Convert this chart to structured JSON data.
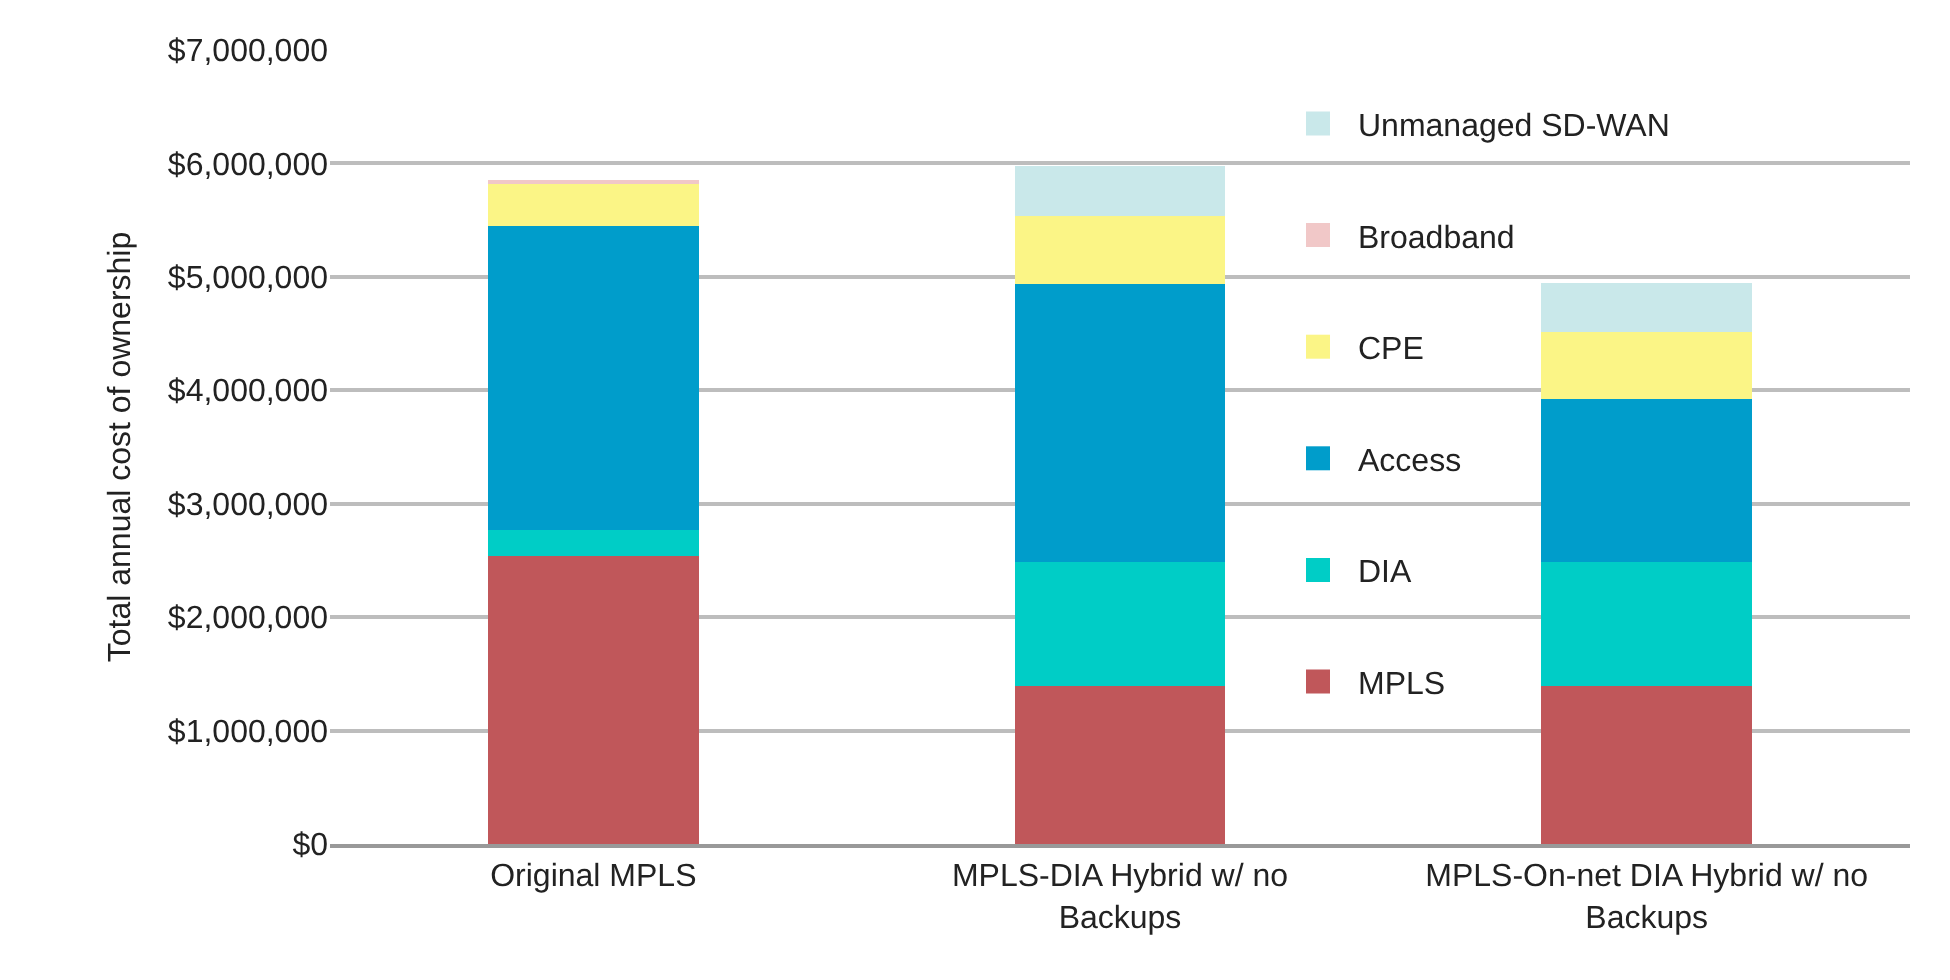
{
  "chart_data": {
    "type": "bar",
    "stacked": true,
    "ylabel": "Total annual cost of ownership",
    "categories": [
      "Original MPLS",
      "MPLS-DIA Hybrid w/ no Backups",
      "MPLS-On-net DIA Hybrid w/ no Backups"
    ],
    "series": [
      {
        "name": "MPLS",
        "color": "#c0575a",
        "values": [
          2540000,
          1390000,
          1390000
        ]
      },
      {
        "name": "DIA",
        "color": "#00cdc6",
        "values": [
          230000,
          1100000,
          1100000
        ]
      },
      {
        "name": "Access",
        "color": "#009dcb",
        "values": [
          2680000,
          2450000,
          1430000
        ]
      },
      {
        "name": "CPE",
        "color": "#fbf586",
        "values": [
          370000,
          600000,
          590000
        ]
      },
      {
        "name": "Broadband",
        "color": "#f1c8c8",
        "values": [
          20000,
          0,
          0
        ]
      },
      {
        "name": "Unmanaged SD-WAN",
        "color": "#c9e8ea",
        "values": [
          0,
          440000,
          440000
        ]
      }
    ],
    "ylim": [
      0,
      7000000
    ],
    "yticks": [
      {
        "value": 0,
        "label": "$0"
      },
      {
        "value": 1000000,
        "label": "$1,000,000"
      },
      {
        "value": 2000000,
        "label": "$2,000,000"
      },
      {
        "value": 3000000,
        "label": "$3,000,000"
      },
      {
        "value": 4000000,
        "label": "$4,000,000"
      },
      {
        "value": 5000000,
        "label": "$5,000,000"
      },
      {
        "value": 6000000,
        "label": "$6,000,000"
      },
      {
        "value": 7000000,
        "label": "$7,000,000"
      }
    ],
    "grid": "y",
    "legend": "top right"
  }
}
